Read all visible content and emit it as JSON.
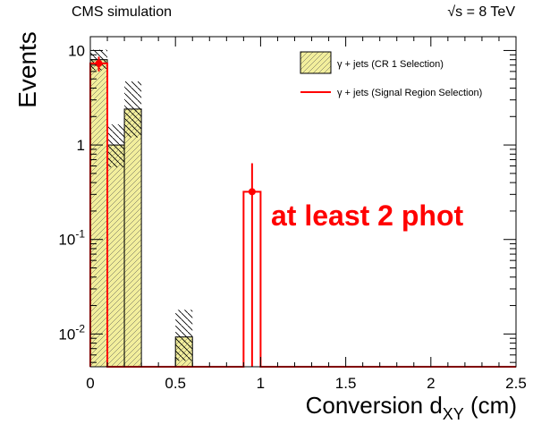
{
  "chart_data": {
    "type": "bar",
    "header_left": "CMS simulation",
    "header_right": "√s = 8 TeV",
    "xlabel": "Conversion d",
    "xlabel_sub": "XY",
    "xlabel_unit": " (cm)",
    "ylabel": "Events",
    "xlim": [
      0,
      2.5
    ],
    "ylim": [
      0.0045,
      14
    ],
    "y_scale": "log",
    "x_ticks": [
      0,
      0.5,
      1,
      1.5,
      2,
      2.5
    ],
    "x_tick_labels": [
      "0",
      "0.5",
      "1",
      "1.5",
      "2",
      "2.5"
    ],
    "y_ticks": [
      {
        "value": 10,
        "base": "10",
        "exp": ""
      },
      {
        "value": 1,
        "base": "1",
        "exp": ""
      },
      {
        "value": 0.1,
        "base": "10",
        "exp": "-1"
      },
      {
        "value": 0.01,
        "base": "10",
        "exp": "-2"
      }
    ],
    "bin_width": 0.1,
    "series": [
      {
        "name": "γ + jets (CR 1 Selection)",
        "style": "filled",
        "color": "#f2ee9c",
        "bins": [
          {
            "x": 0.0,
            "value": 8.0,
            "err_lo": 6.2,
            "err_hi": 10.2
          },
          {
            "x": 0.1,
            "value": 1.0,
            "err_lo": 0.58,
            "err_hi": 1.65
          },
          {
            "x": 0.2,
            "value": 2.4,
            "err_lo": 1.2,
            "err_hi": 4.7
          },
          {
            "x": 0.5,
            "value": 0.0093,
            "err_lo": 0.0052,
            "err_hi": 0.018
          }
        ]
      },
      {
        "name": "γ + jets (Signal Region Selection)",
        "style": "line",
        "color": "#ff0000",
        "bins": [
          {
            "x": 0.0,
            "value": 7.3,
            "err_lo": 6.0,
            "err_hi": 8.6
          },
          {
            "x": 0.9,
            "value": 0.32,
            "err_lo": 0.0,
            "err_hi": 0.64
          }
        ]
      }
    ],
    "legend_position": "top-right",
    "annotation": "at least 2 phot",
    "annotation_color": "#ff0000"
  }
}
